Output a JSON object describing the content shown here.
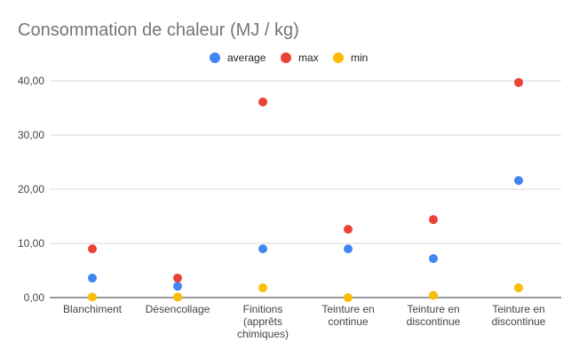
{
  "chart_data": {
    "type": "scatter",
    "title": "Consommation de chaleur (MJ / kg)",
    "xlabel": "",
    "ylabel": "",
    "categories": [
      [
        "Blanchiment"
      ],
      [
        "Désencollage"
      ],
      [
        "Finitions",
        "(apprêts",
        "chimiques)"
      ],
      [
        "Teinture en",
        "continue"
      ],
      [
        "Teinture en",
        "discontinue"
      ],
      [
        "Teinture en",
        "discontinue"
      ]
    ],
    "series": [
      {
        "name": "average",
        "color": "#4285f4",
        "values": [
          3.6,
          2.1,
          9.0,
          9.0,
          7.2,
          21.6
        ]
      },
      {
        "name": "max",
        "color": "#ea4335",
        "values": [
          9.0,
          3.6,
          36.1,
          12.6,
          14.4,
          39.7
        ]
      },
      {
        "name": "min",
        "color": "#fbbc04",
        "values": [
          0.1,
          0.1,
          1.8,
          0.0,
          0.4,
          1.8
        ]
      }
    ],
    "ylim": [
      0,
      40
    ],
    "yticks": [
      0,
      10,
      20,
      30,
      40
    ],
    "ytick_labels": [
      "0,00",
      "10,00",
      "20,00",
      "30,00",
      "40,00"
    ],
    "grid": true,
    "legend": "top-center"
  }
}
